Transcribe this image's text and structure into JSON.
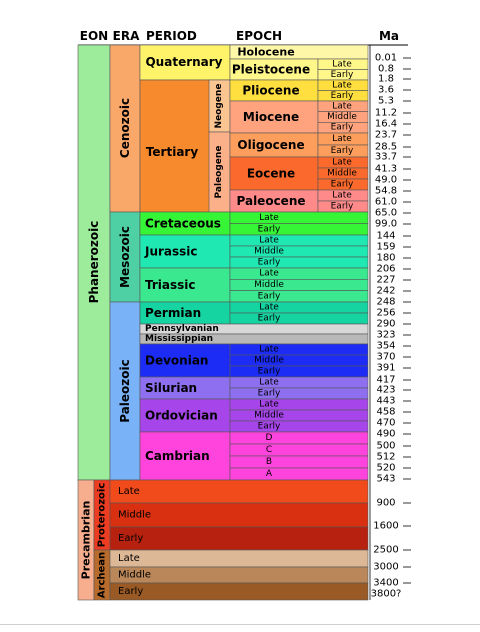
{
  "headers": [
    "EON",
    "ERA",
    "PERIOD",
    "EPOCH",
    "Ma"
  ],
  "colors": {
    "phanerozoic": "#9dec9b",
    "precambrian": "#f7ae8e",
    "cenozoic": "#f9a86a",
    "quaternary": "#fff36a",
    "tertiary": "#f78a2c",
    "neogene": "#fbc592",
    "paleogene": "#fbb08a",
    "holocene": "#fff7a8",
    "pleistocene": "#fff78a",
    "pliocene": "#ffdf3f",
    "miocene": "#ffa37e",
    "oligocene": "#fd9e5c",
    "eocene": "#fb6a2c",
    "paleocene": "#fe8a8a",
    "mesozoic": "#4fd0a4",
    "cretaceous": "#36f536",
    "jurassic": "#20e8b2",
    "triassic": "#3ae890",
    "paleozoic": "#79b2f7",
    "permian": "#16d4a2",
    "pennsylvanian": "#d8d8d8",
    "mississippian": "#b8b8b8",
    "devonian": "#1c2cf4",
    "silurian": "#8d6ff0",
    "ordovician": "#a646ea",
    "cambrian": "#ff44de",
    "proterozoic": "#ec3c22",
    "archean": "#b76b2c",
    "pro_late": "#f14a1b",
    "pro_middle": "#d83010",
    "pro_early": "#b72210",
    "arc_late": "#ddb896",
    "arc_middle": "#b9875a",
    "arc_early": "#9a5a26"
  },
  "eons": [
    {
      "name": "Phanerozoic"
    },
    {
      "name": "Precambrian"
    }
  ],
  "eras": [
    {
      "name": "Cenozoic"
    },
    {
      "name": "Mesozoic"
    },
    {
      "name": "Paleozoic"
    },
    {
      "name": "Proterozoic"
    },
    {
      "name": "Archean"
    }
  ],
  "periods": [
    {
      "name": "Quaternary"
    },
    {
      "name": "Tertiary"
    },
    {
      "name": "Cretaceous"
    },
    {
      "name": "Jurassic"
    },
    {
      "name": "Triassic"
    },
    {
      "name": "Permian"
    },
    {
      "name": "Pennsylvanian"
    },
    {
      "name": "Mississippian"
    },
    {
      "name": "Devonian"
    },
    {
      "name": "Silurian"
    },
    {
      "name": "Ordovician"
    },
    {
      "name": "Cambrian"
    }
  ],
  "subperiods": [
    {
      "name": "Neogene"
    },
    {
      "name": "Paleogene"
    }
  ],
  "epochs": [
    {
      "name": "Holocene"
    },
    {
      "name": "Pleistocene"
    },
    {
      "name": "Pliocene"
    },
    {
      "name": "Miocene"
    },
    {
      "name": "Oligocene"
    },
    {
      "name": "Eocene"
    },
    {
      "name": "Paleocene"
    }
  ],
  "stage_labels": {
    "pleistocene": [
      "Late",
      "Early"
    ],
    "pliocene": [
      "Late",
      "Early"
    ],
    "miocene": [
      "Late",
      "Middle",
      "Early"
    ],
    "oligocene": [
      "Late",
      "Early"
    ],
    "eocene": [
      "Late",
      "Middle",
      "Early"
    ],
    "paleocene": [
      "Late",
      "Early"
    ],
    "cretaceous": [
      "Late",
      "Early"
    ],
    "jurassic": [
      "Late",
      "Middle",
      "Early"
    ],
    "triassic": [
      "Late",
      "Middle",
      "Early"
    ],
    "permian": [
      "Late",
      "Early"
    ],
    "devonian": [
      "Late",
      "Middle",
      "Early"
    ],
    "silurian": [
      "Late",
      "Early"
    ],
    "ordovician": [
      "Late",
      "Middle",
      "Early"
    ],
    "cambrian": [
      "D",
      "C",
      "B",
      "A"
    ],
    "proterozoic": [
      "Late",
      "Middle",
      "Early"
    ],
    "archean": [
      "Late",
      "Middle",
      "Early"
    ]
  },
  "ma_labels": [
    "0.01",
    "0.8",
    "1.8",
    "3.6",
    "5.3",
    "11.2",
    "16.4",
    "23.7",
    "28.5",
    "33.7",
    "41.3",
    "49.0",
    "54.8",
    "61.0",
    "65.0",
    "99.0",
    "144",
    "159",
    "180",
    "206",
    "227",
    "242",
    "248",
    "256",
    "290",
    "323",
    "354",
    "370",
    "391",
    "417",
    "423",
    "443",
    "458",
    "470",
    "490",
    "500",
    "512",
    "520",
    "543",
    "900",
    "1600",
    "2500",
    "3000",
    "3400",
    "3800?"
  ]
}
